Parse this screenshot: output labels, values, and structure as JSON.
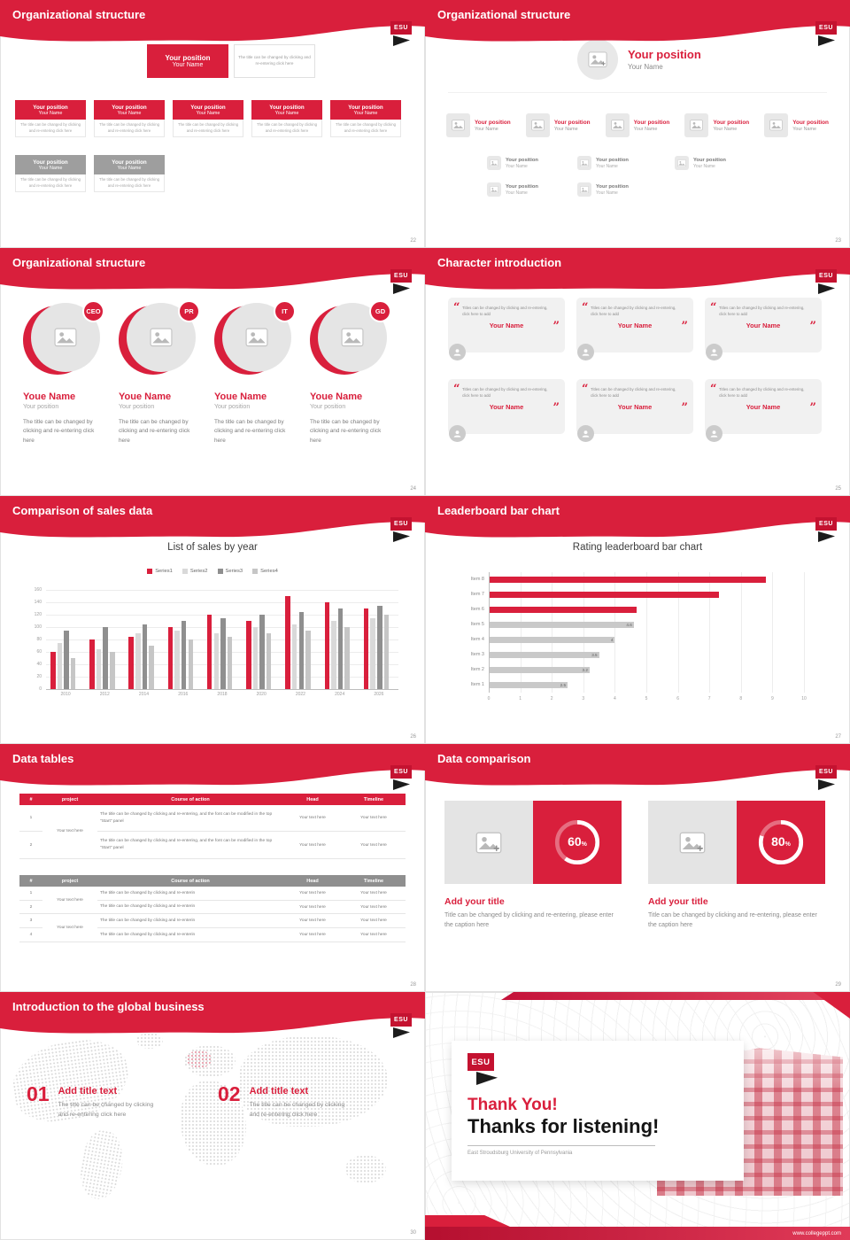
{
  "accent": "#D91F3C",
  "logo": {
    "abbr": "ESU"
  },
  "common": {
    "position": "Your position",
    "name": "Your Name",
    "caption_click": "The title can be changed by clicking and re-entering click here",
    "your_text": "Your text here"
  },
  "slides": {
    "org_boxes": {
      "title": "Organizational structure",
      "page": "22"
    },
    "org_tree": {
      "title": "Organizational structure",
      "page": "23"
    },
    "org_people": {
      "title": "Organizational structure",
      "page": "24",
      "name": "Youe Name",
      "role": "Your position",
      "caption": "The title can be changed by clicking and re-entering click here",
      "badges": [
        "CEO",
        "PR",
        "IT",
        "GD"
      ]
    },
    "characters": {
      "title": "Character introduction",
      "page": "25",
      "quote": "Titles can be changed by clicking and re-entering, click here to add",
      "name": "Your Name"
    },
    "sales": {
      "title": "Comparison of sales data",
      "page": "26"
    },
    "leaderboard": {
      "title": "Leaderboard bar chart",
      "page": "27"
    },
    "tables": {
      "title": "Data tables",
      "page": "28",
      "headers": [
        "#",
        "project",
        "Course of action",
        "Head",
        "Timeline"
      ],
      "cell": "Your text here",
      "t1_course": "The title can be changed by clicking and re-entering, and the font can be modified in the top \"Start\" panel",
      "t2_course": "The title can be changed by clicking and re-enterin",
      "t1_nums": [
        "1",
        "2"
      ],
      "t2_nums": [
        "1",
        "2",
        "3",
        "4"
      ]
    },
    "comparison": {
      "title": "Data comparison",
      "page": "29",
      "panels": [
        {
          "pct": "60",
          "unit": "%",
          "heading": "Add your title",
          "caption": "Title can be changed by clicking and re-entering, please enter the caption here"
        },
        {
          "pct": "80",
          "unit": "%",
          "heading": "Add your title",
          "caption": "Title can be changed by clicking and re-entering, please enter the caption here"
        }
      ]
    },
    "global": {
      "title": "Introduction to the global business",
      "page": "30",
      "points": [
        {
          "num": "01",
          "heading": "Add title text",
          "caption": "The title can be changed by clicking and re-entering click here"
        },
        {
          "num": "02",
          "heading": "Add title text",
          "caption": "The title can be changed by clicking and re-entering click here"
        }
      ]
    },
    "thanks": {
      "line1": "Thank You!",
      "line2": "Thanks for listening!",
      "subtitle": "East Stroudsburg University of Pennsylvania",
      "url": "www.collegeppt.com"
    }
  },
  "chart_data": [
    {
      "type": "bar",
      "title": "List of sales by year",
      "categories": [
        "2010",
        "2012",
        "2014",
        "2016",
        "2018",
        "2020",
        "2022",
        "2024",
        "2026"
      ],
      "series": [
        {
          "name": "Series1",
          "color": "#D91F3C",
          "values": [
            60,
            80,
            85,
            100,
            120,
            110,
            150,
            140,
            130
          ]
        },
        {
          "name": "Series2",
          "color": "#d9d9d9",
          "values": [
            75,
            65,
            90,
            95,
            90,
            100,
            105,
            110,
            115
          ]
        },
        {
          "name": "Series3",
          "color": "#8f8f8f",
          "values": [
            95,
            100,
            105,
            110,
            115,
            120,
            125,
            130,
            135
          ]
        },
        {
          "name": "Series4",
          "color": "#c6c6c6",
          "values": [
            50,
            60,
            70,
            80,
            85,
            90,
            95,
            100,
            120
          ]
        }
      ],
      "ylim": [
        0,
        160
      ],
      "ytick": 20,
      "grid": true,
      "legend_position": "top"
    },
    {
      "type": "hbar",
      "title": "Rating leaderboard bar chart",
      "items": [
        {
          "label": "Item 8",
          "value": 8.8,
          "color": "#D91F3C",
          "show_value": false
        },
        {
          "label": "Item 7",
          "value": 7.3,
          "color": "#D91F3C",
          "show_value": false
        },
        {
          "label": "Item 6",
          "value": 4.7,
          "color": "#D91F3C",
          "show_value": false
        },
        {
          "label": "Item 5",
          "value": 4.6,
          "color": "#c9c9c9",
          "show_value": true
        },
        {
          "label": "Item 4",
          "value": 4.0,
          "color": "#c9c9c9",
          "show_value": true
        },
        {
          "label": "Item 3",
          "value": 3.5,
          "color": "#c9c9c9",
          "show_value": true
        },
        {
          "label": "Item 2",
          "value": 3.2,
          "color": "#c9c9c9",
          "show_value": true
        },
        {
          "label": "Item 1",
          "value": 2.5,
          "color": "#c9c9c9",
          "show_value": true
        }
      ],
      "xlim": [
        0,
        10
      ],
      "xtick": 1,
      "grid": true
    }
  ]
}
